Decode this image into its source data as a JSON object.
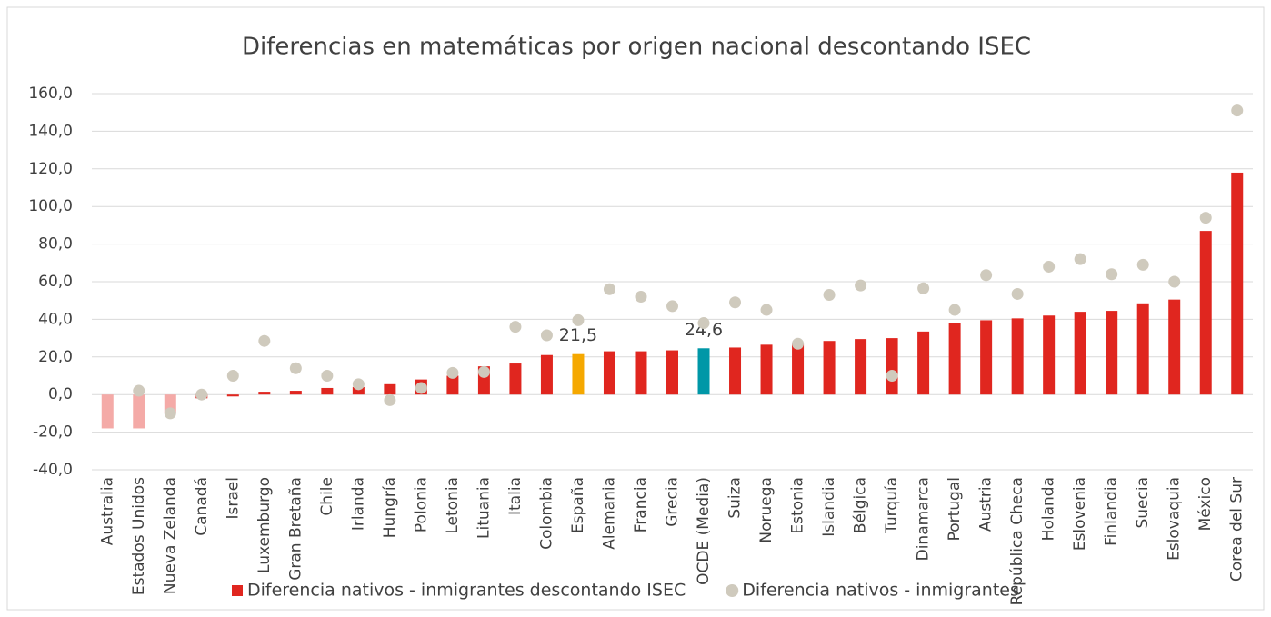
{
  "chart_data": {
    "type": "bar",
    "title": "Diferencias en matemáticas por origen nacional descontando ISEC",
    "categories": [
      "Australia",
      "Estados Unidos",
      "Nueva Zelanda",
      "Canadá",
      "Israel",
      "Luxemburgo",
      "Gran Bretaña",
      "Chile",
      "Irlanda",
      "Hungría",
      "Polonia",
      "Letonia",
      "Lituania",
      "Italia",
      "Colombia",
      "España",
      "Alemania",
      "Francia",
      "Grecia",
      "OCDE (Media)",
      "Suiza",
      "Noruega",
      "Estonia",
      "Islandia",
      "Bélgica",
      "Turquía",
      "Dinamarca",
      "Portugal",
      "Austria",
      "República Checa",
      "Holanda",
      "Eslovenia",
      "Finlandia",
      "Suecia",
      "Eslovaquia",
      "México",
      "Corea del Sur"
    ],
    "series": [
      {
        "name": "Diferencia nativos - inmigrantes descontando ISEC",
        "type": "bar",
        "color": "#e0261f",
        "colors": [
          "#f4aaa7",
          "#f4aaa7",
          "#f4aaa7",
          "#e0261f",
          "#e0261f",
          "#e0261f",
          "#e0261f",
          "#e0261f",
          "#e0261f",
          "#e0261f",
          "#e0261f",
          "#e0261f",
          "#e0261f",
          "#e0261f",
          "#e0261f",
          "#f5a800",
          "#e0261f",
          "#e0261f",
          "#e0261f",
          "#0097a7",
          "#e0261f",
          "#e0261f",
          "#e0261f",
          "#e0261f",
          "#e0261f",
          "#e0261f",
          "#e0261f",
          "#e0261f",
          "#e0261f",
          "#e0261f",
          "#e0261f",
          "#e0261f",
          "#e0261f",
          "#e0261f",
          "#e0261f",
          "#e0261f",
          "#e0261f"
        ],
        "values": [
          -18,
          -18,
          -10,
          -2,
          -1,
          1.5,
          2,
          3.5,
          4,
          5.5,
          8,
          10,
          15,
          16.5,
          21,
          21.5,
          23,
          23,
          23.5,
          24.6,
          25,
          26.5,
          27,
          28.5,
          29.5,
          30,
          33.5,
          38,
          39.5,
          40.5,
          42,
          44,
          44.5,
          48.5,
          50.5,
          87,
          118
        ],
        "value_labels": [
          null,
          null,
          null,
          null,
          null,
          null,
          null,
          null,
          null,
          null,
          null,
          null,
          null,
          null,
          null,
          "21,5",
          null,
          null,
          null,
          "24,6",
          null,
          null,
          null,
          null,
          null,
          null,
          null,
          null,
          null,
          null,
          null,
          null,
          null,
          null,
          null,
          null,
          null
        ]
      },
      {
        "name": "Diferencia nativos - inmigrantes",
        "type": "scatter",
        "color": "#cfcabd",
        "values": [
          null,
          2,
          -10,
          0,
          10,
          28.5,
          14,
          10,
          5.5,
          -3,
          3.5,
          11.5,
          12,
          36,
          31.5,
          39.5,
          56,
          52,
          47,
          38,
          49,
          45,
          27,
          53,
          58,
          10,
          56.5,
          45,
          63.5,
          53.5,
          68,
          72,
          64,
          69,
          60,
          94,
          151
        ]
      }
    ],
    "ylim": [
      -40,
      160
    ],
    "yticks": [
      {
        "value": -40,
        "label": "-40,0"
      },
      {
        "value": -20,
        "label": "-20,0"
      },
      {
        "value": 0,
        "label": "0,0"
      },
      {
        "value": 20,
        "label": "20,0"
      },
      {
        "value": 40,
        "label": "40,0"
      },
      {
        "value": 60,
        "label": "60,0"
      },
      {
        "value": 80,
        "label": "80,0"
      },
      {
        "value": 100,
        "label": "100,0"
      },
      {
        "value": 120,
        "label": "120,0"
      },
      {
        "value": 140,
        "label": "140,0"
      },
      {
        "value": 160,
        "label": "160,0"
      }
    ],
    "grid": true,
    "legend": "bottom"
  }
}
